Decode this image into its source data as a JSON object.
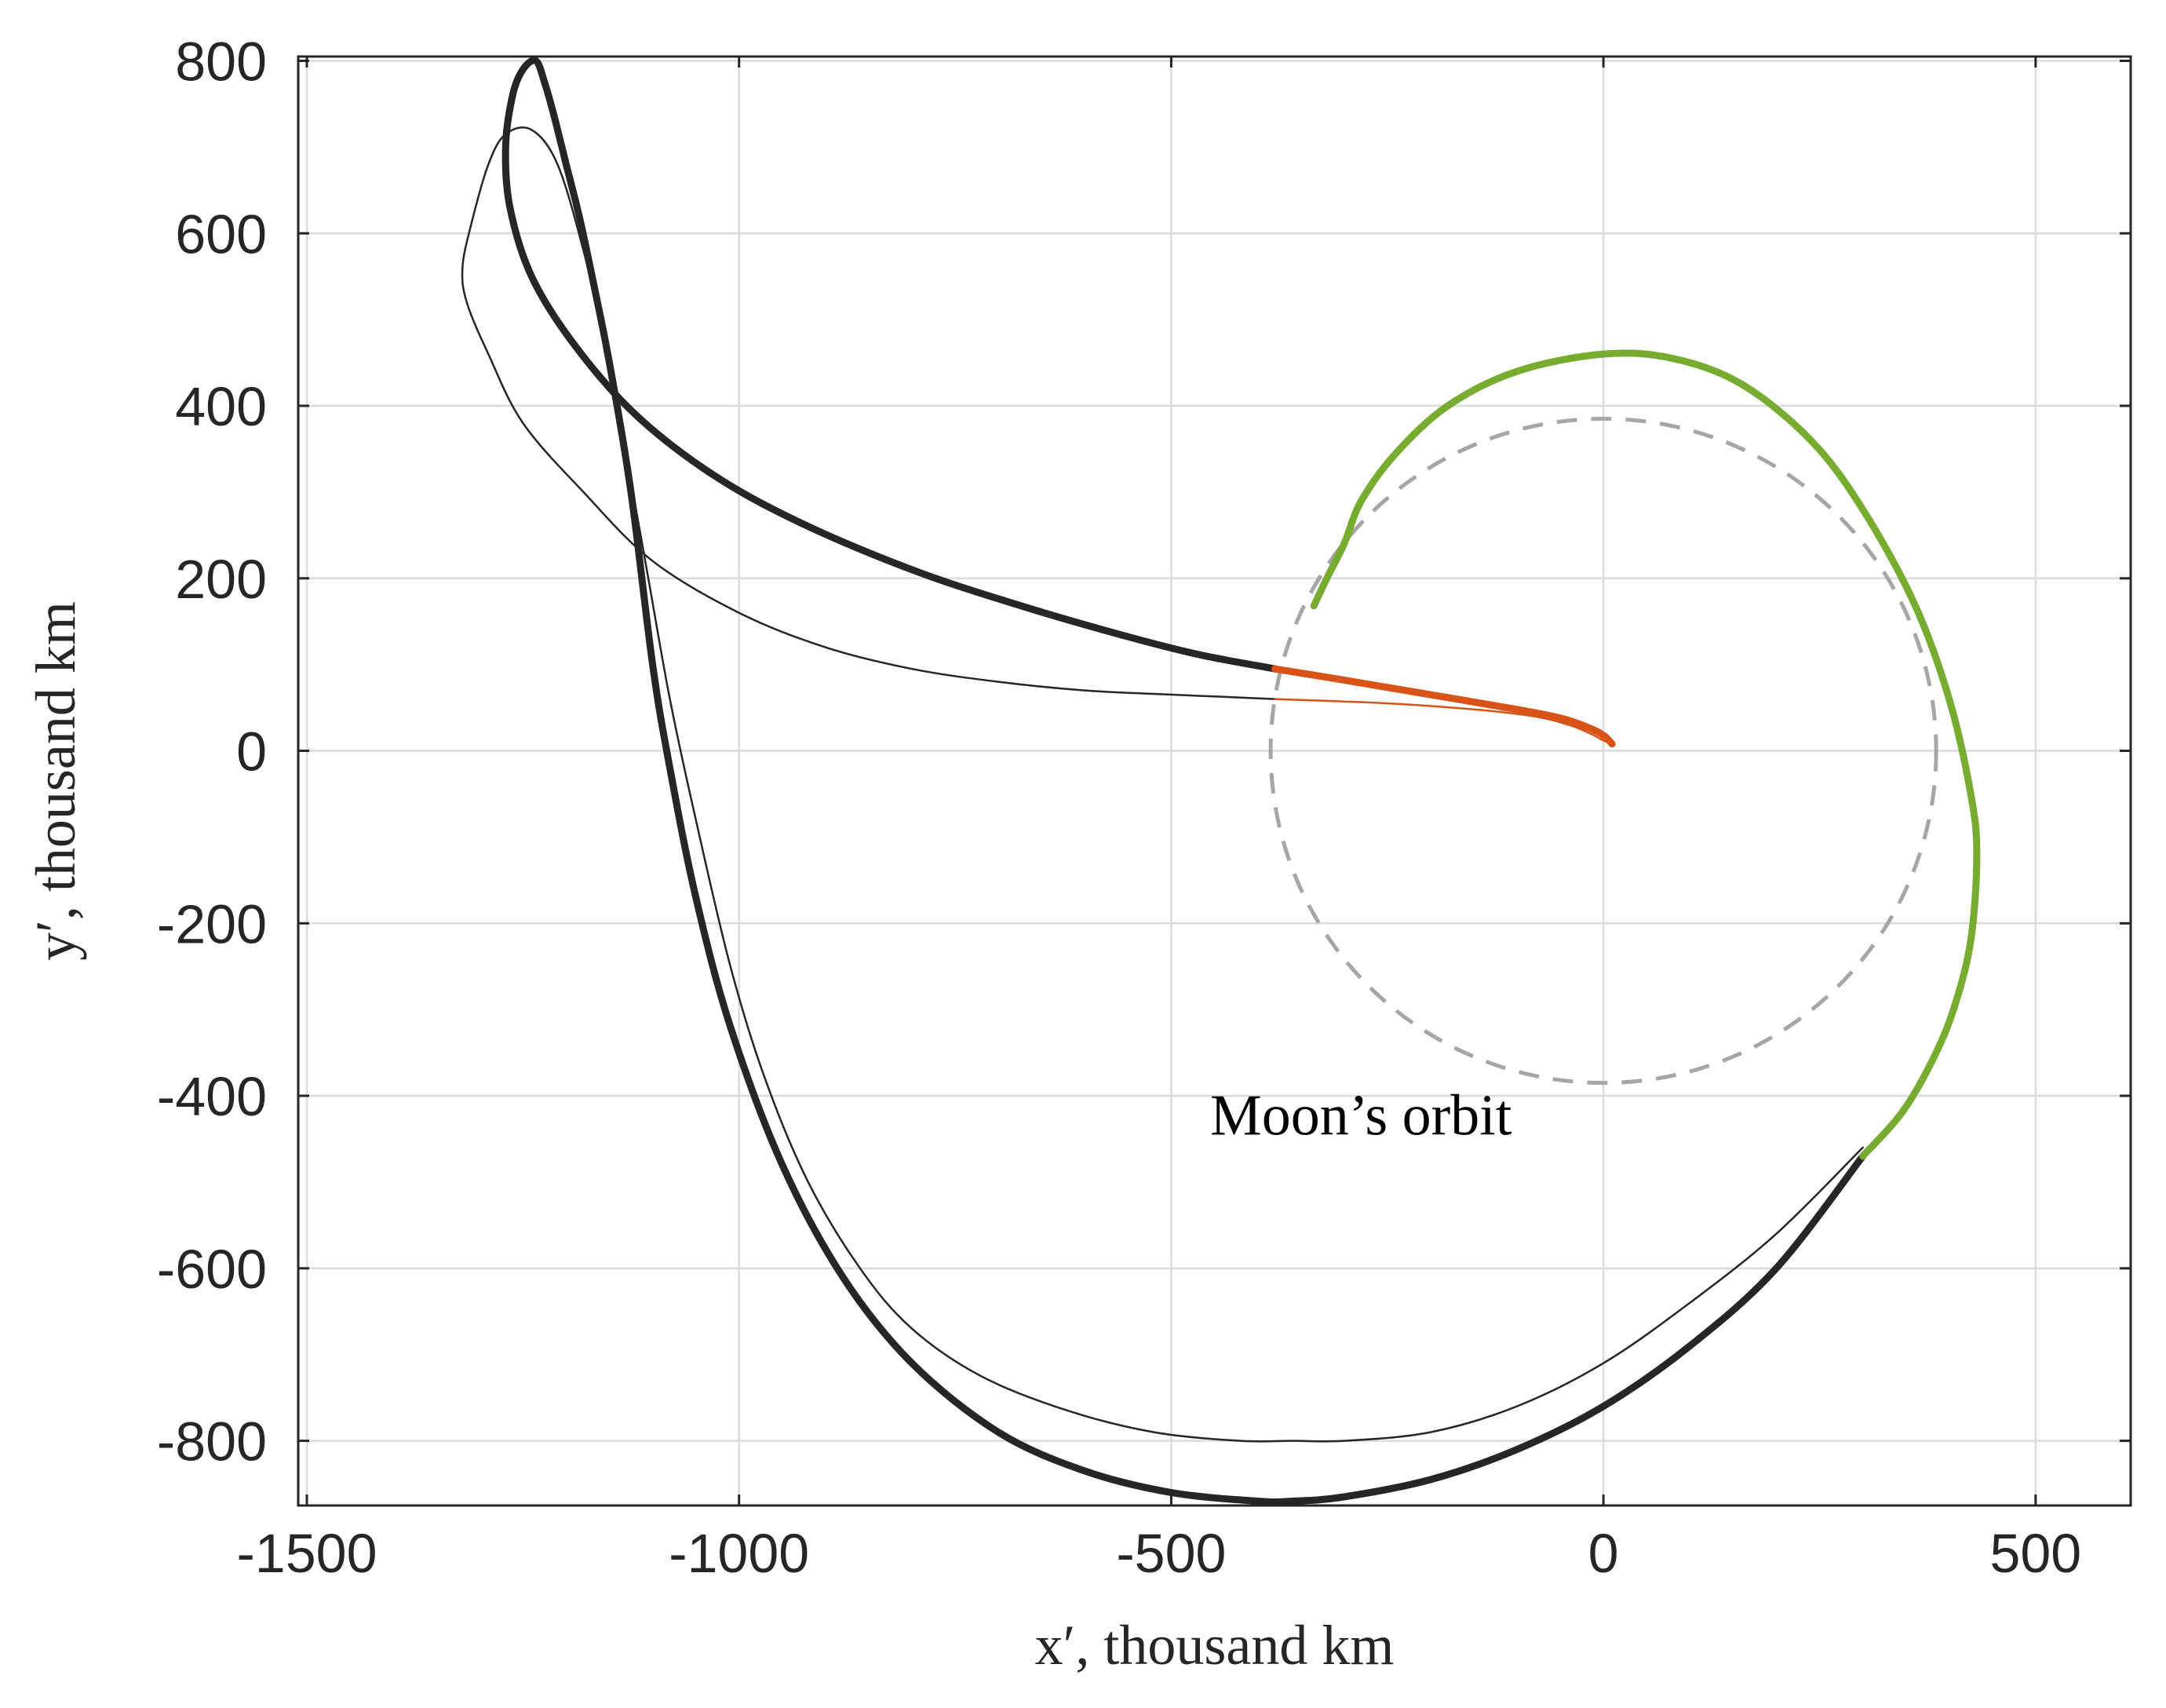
{
  "chart_data": {
    "type": "line",
    "title": "",
    "xlabel": "x′, thousand km",
    "ylabel": "y′, thousand km",
    "xlim": [
      -1510,
      610
    ],
    "ylim": [
      -875,
      805
    ],
    "grid": true,
    "xticks": [
      -1500,
      -1000,
      -500,
      0,
      500
    ],
    "yticks": [
      -800,
      -600,
      -400,
      -200,
      0,
      200,
      400,
      600,
      800
    ],
    "xtick_labels": [
      "-1500",
      "-1000",
      "-500",
      "0",
      "500"
    ],
    "ytick_labels": [
      "-800",
      "-600",
      "-400",
      "-200",
      "0",
      "200",
      "400",
      "600",
      "800"
    ],
    "annotations": [
      {
        "text": "Moon’s orbit",
        "x": -455,
        "y": -445
      }
    ],
    "colors": {
      "thick_black": "#262626",
      "thin_black": "#262626",
      "orange": "#d95319",
      "green": "#77ac30",
      "moon_orbit": "#a6a6a6",
      "grid": "#dcdcdc",
      "axes": "#262626"
    },
    "series": [
      {
        "name": "Moon orbit",
        "style": "dashed",
        "circle": {
          "cx": 0,
          "cy": 0,
          "r": 385
        }
      },
      {
        "name": "trajectory thick black (lower arc)",
        "style": "thick",
        "color_key": "thick_black",
        "x": [
          300,
          200,
          100,
          0,
          -100,
          -200,
          -300,
          -360,
          -400,
          -500,
          -600,
          -700,
          -800,
          -880,
          -950,
          -1010,
          -1050,
          -1080,
          -1100,
          -1125,
          -1150,
          -1170,
          -1185,
          -1200
        ],
        "y": [
          -470,
          -600,
          -690,
          -760,
          -810,
          -845,
          -865,
          -870,
          -870,
          -860,
          -835,
          -790,
          -710,
          -610,
          -480,
          -320,
          -170,
          -20,
          100,
          300,
          450,
          550,
          620,
          680
        ]
      },
      {
        "name": "trajectory thick black (loop)",
        "style": "thick",
        "color_key": "thick_black",
        "x": [
          -1200,
          -1215,
          -1225,
          -1235,
          -1250,
          -1262,
          -1270,
          -1265,
          -1240,
          -1190,
          -1120,
          -1030,
          -930,
          -800,
          -680,
          -560,
          -470,
          -380
        ],
        "y": [
          680,
          740,
          775,
          800,
          790,
          760,
          700,
          630,
          550,
          470,
          390,
          320,
          265,
          210,
          170,
          135,
          112,
          95
        ]
      },
      {
        "name": "trajectory orange (thick)",
        "style": "thick",
        "color_key": "orange",
        "x": [
          -380,
          -300,
          -200,
          -100,
          -50,
          -20,
          0,
          10
        ],
        "y": [
          95,
          82,
          65,
          48,
          38,
          28,
          18,
          8
        ]
      },
      {
        "name": "trajectory green",
        "style": "thick",
        "color_key": "green",
        "x": [
          -335,
          -320,
          -300,
          -280,
          -240,
          -180,
          -100,
          0,
          80,
          160,
          240,
          300,
          360,
          400,
          425,
          432,
          425,
          405,
          380,
          345,
          300
        ],
        "y": [
          168,
          200,
          240,
          290,
          345,
          400,
          440,
          460,
          455,
          425,
          360,
          280,
          170,
          60,
          -50,
          -120,
          -220,
          -300,
          -360,
          -420,
          -470
        ]
      },
      {
        "name": "trajectory thin black",
        "style": "thin",
        "color_key": "thin_black",
        "x": [
          300,
          200,
          100,
          0,
          -100,
          -200,
          -300,
          -360,
          -420,
          -520,
          -620,
          -720,
          -800,
          -860,
          -920,
          -970,
          -1010,
          -1050,
          -1080,
          -1105,
          -1130,
          -1155,
          -1180,
          -1210,
          -1240,
          -1270,
          -1290,
          -1310,
          -1320,
          -1315,
          -1290,
          -1250,
          -1180,
          -1100,
          -1000,
          -900,
          -800,
          -700,
          -600,
          -520,
          -450,
          -380
        ],
        "y": [
          -460,
          -560,
          -640,
          -710,
          -760,
          -790,
          -800,
          -800,
          -800,
          -790,
          -765,
          -725,
          -670,
          -600,
          -500,
          -380,
          -250,
          -80,
          60,
          200,
          340,
          470,
          580,
          680,
          720,
          715,
          680,
          610,
          560,
          520,
          460,
          380,
          300,
          220,
          160,
          120,
          95,
          80,
          70,
          66,
          63,
          60
        ]
      },
      {
        "name": "trajectory orange (thin)",
        "style": "thin",
        "color_key": "orange",
        "x": [
          -380,
          -250,
          -150,
          -80,
          -40,
          -15,
          0,
          10
        ],
        "y": [
          60,
          55,
          48,
          40,
          30,
          20,
          12,
          8
        ]
      }
    ]
  }
}
